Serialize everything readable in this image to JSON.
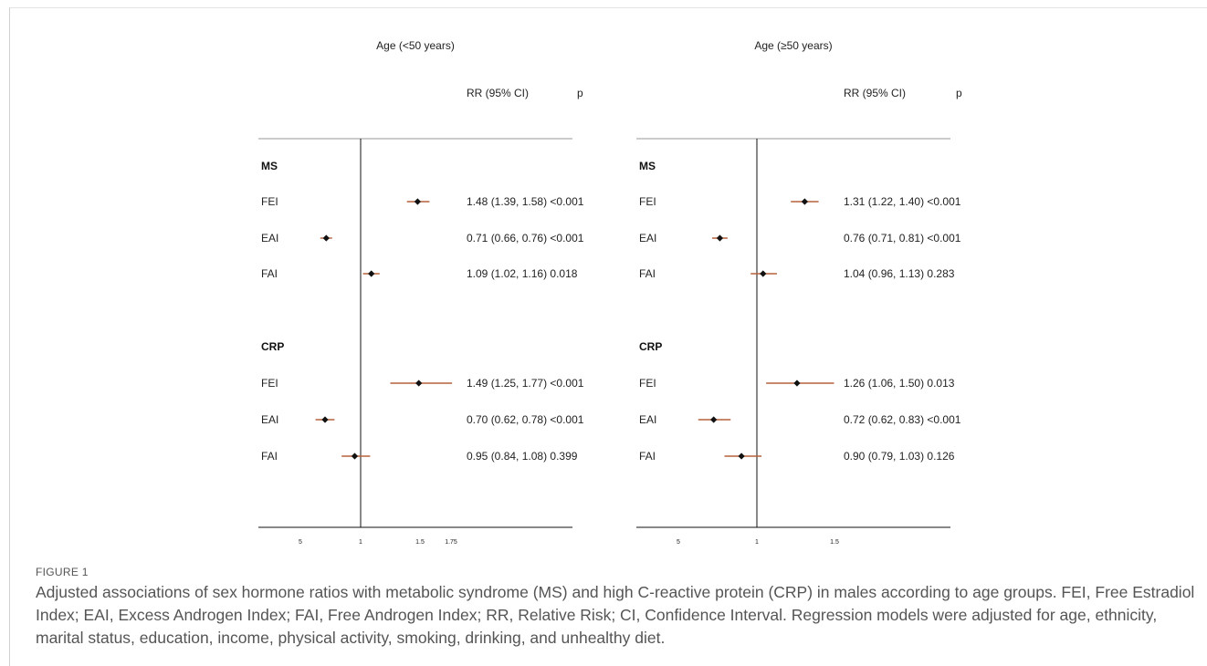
{
  "figure": {
    "label": "FIGURE 1",
    "caption": "Adjusted associations of sex hormone ratios with metabolic syndrome (MS) and high C-reactive protein (CRP) in males according to age groups. FEI, Free Estradiol Index; EAI, Excess Androgen Index; FAI, Free Androgen Index; RR, Relative Risk; CI, Confidence Interval. Regression models were adjusted for age, ethnicity, marital status, education, income, physical activity, smoking, drinking, and unhealthy diet."
  },
  "colors": {
    "ci_line": "#b5603a",
    "point": "#111111",
    "axis": "#111111"
  },
  "chart_data": [
    {
      "type": "forest",
      "title": "Age (<50 years)",
      "col_rr": "RR (95% CI)",
      "col_p": "p",
      "ref_line": 1,
      "ticks": [
        "5",
        "1",
        "1.5",
        "1.75"
      ],
      "groups": [
        {
          "label": "MS",
          "rows": [
            {
              "label": "FEI",
              "rr": 1.48,
              "lo": 1.39,
              "hi": 1.58,
              "text": "1.48 (1.39, 1.58)",
              "p": "<0.001"
            },
            {
              "label": "EAI",
              "rr": 0.71,
              "lo": 0.66,
              "hi": 0.76,
              "text": "0.71 (0.66, 0.76)",
              "p": "<0.001"
            },
            {
              "label": "FAI",
              "rr": 1.09,
              "lo": 1.02,
              "hi": 1.16,
              "text": "1.09 (1.02, 1.16)",
              "p": "0.018"
            }
          ]
        },
        {
          "label": "CRP",
          "rows": [
            {
              "label": "FEI",
              "rr": 1.49,
              "lo": 1.25,
              "hi": 1.77,
              "text": "1.49 (1.25, 1.77)",
              "p": "<0.001"
            },
            {
              "label": "EAI",
              "rr": 0.7,
              "lo": 0.62,
              "hi": 0.78,
              "text": "0.70 (0.62, 0.78)",
              "p": "<0.001"
            },
            {
              "label": "FAI",
              "rr": 0.95,
              "lo": 0.84,
              "hi": 1.08,
              "text": "0.95 (0.84, 1.08)",
              "p": "0.399"
            }
          ]
        }
      ]
    },
    {
      "type": "forest",
      "title": "Age (≥50 years)",
      "col_rr": "RR (95% CI)",
      "col_p": "p",
      "ref_line": 1,
      "ticks": [
        "5",
        "1",
        "1.5"
      ],
      "groups": [
        {
          "label": "MS",
          "rows": [
            {
              "label": "FEI",
              "rr": 1.31,
              "lo": 1.22,
              "hi": 1.4,
              "text": "1.31 (1.22, 1.40)",
              "p": "<0.001"
            },
            {
              "label": "EAI",
              "rr": 0.76,
              "lo": 0.71,
              "hi": 0.81,
              "text": "0.76 (0.71, 0.81)",
              "p": "<0.001"
            },
            {
              "label": "FAI",
              "rr": 1.04,
              "lo": 0.96,
              "hi": 1.13,
              "text": "1.04 (0.96, 1.13)",
              "p": "0.283"
            }
          ]
        },
        {
          "label": "CRP",
          "rows": [
            {
              "label": "FEI",
              "rr": 1.26,
              "lo": 1.06,
              "hi": 1.5,
              "text": "1.26 (1.06, 1.50)",
              "p": "0.013"
            },
            {
              "label": "EAI",
              "rr": 0.72,
              "lo": 0.62,
              "hi": 0.83,
              "text": "0.72 (0.62, 0.83)",
              "p": "<0.001"
            },
            {
              "label": "FAI",
              "rr": 0.9,
              "lo": 0.79,
              "hi": 1.03,
              "text": "0.90 (0.79, 1.03)",
              "p": "0.126"
            }
          ]
        }
      ]
    }
  ]
}
